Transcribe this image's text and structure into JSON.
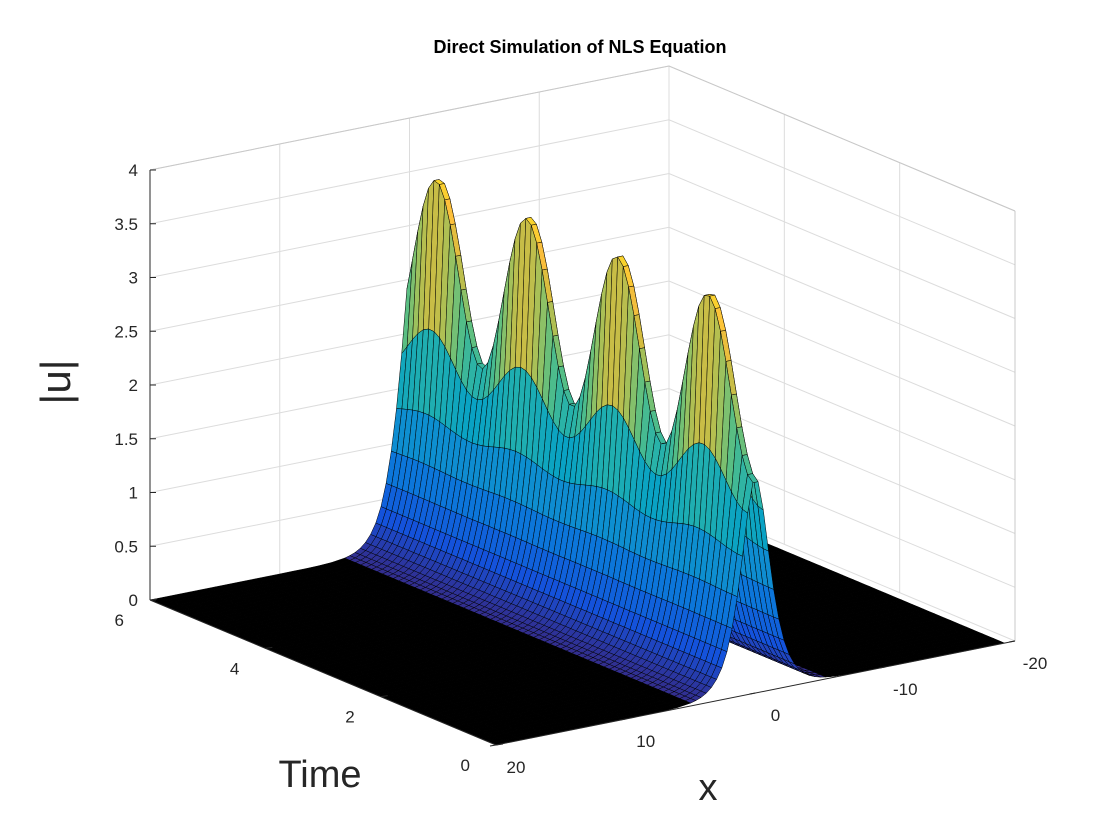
{
  "chart_data": {
    "type": "surface",
    "title": "Direct Simulation of NLS Equation",
    "xlabel": "x",
    "ylabel": "Time",
    "zlabel": "|u|",
    "xlim": [
      -20,
      20
    ],
    "ylim": [
      0,
      6
    ],
    "zlim": [
      0,
      4
    ],
    "x_ticks": [
      -20,
      -10,
      0,
      10,
      20
    ],
    "x_tick_labels": [
      "-20",
      "-10",
      "0",
      "10",
      "20"
    ],
    "y_ticks": [
      0,
      2,
      4,
      6
    ],
    "y_tick_labels": [
      "0",
      "2",
      "4",
      "6"
    ],
    "z_ticks": [
      0,
      0.5,
      1,
      1.5,
      2,
      2.5,
      3,
      3.5,
      4
    ],
    "z_tick_labels": [
      "0",
      "0.5",
      "1",
      "1.5",
      "2",
      "2.5",
      "3",
      "3.5",
      "4"
    ],
    "grid": true,
    "colormap": "parula",
    "edge_color": "#000000",
    "surface_model": "|u| = 2 sech(x) at t=0; periodic breathing with peak |u| ≈ 3.9, minimum ≈ 1 at center, period ≈ 1.57",
    "center_profile": {
      "time": [
        0,
        0.785,
        1.571,
        2.356,
        3.142,
        3.927,
        4.712,
        5.498,
        6.283
      ],
      "peak_u": [
        2.0,
        3.9,
        2.0,
        3.9,
        2.0,
        3.9,
        2.0,
        3.9,
        2.0
      ]
    }
  }
}
